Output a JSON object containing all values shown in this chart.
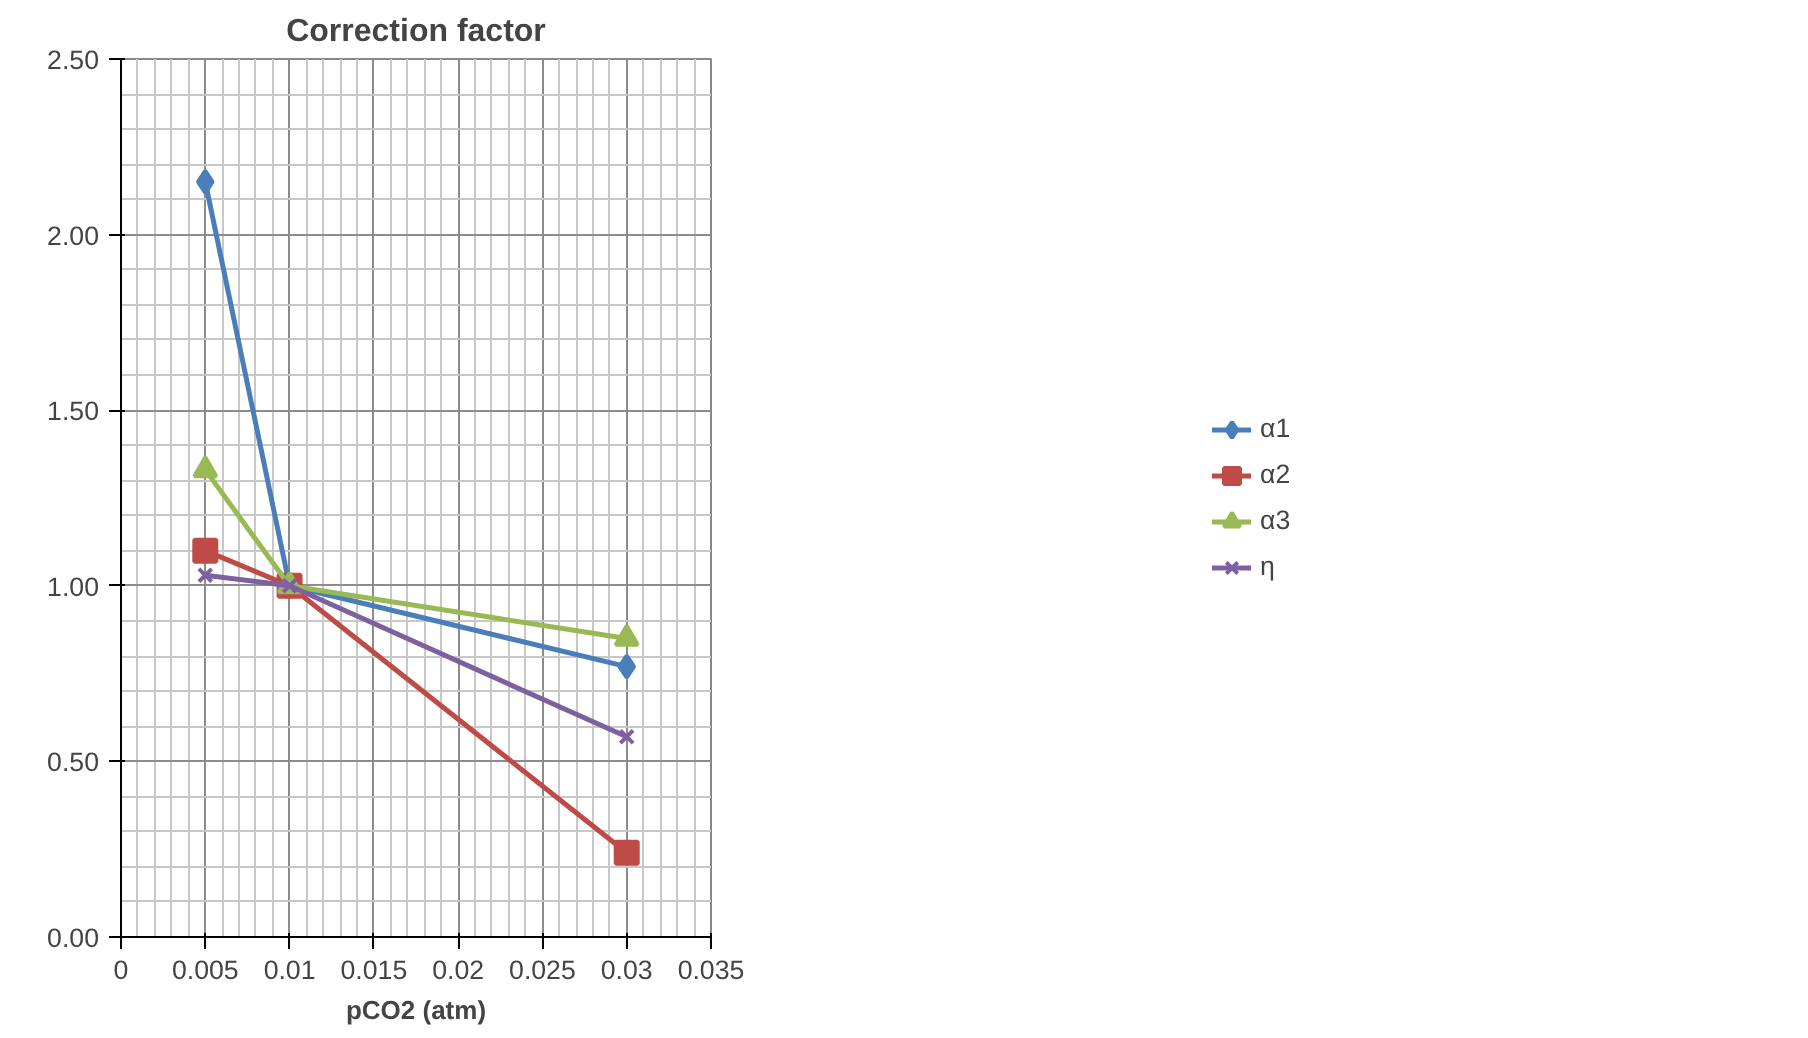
{
  "chart_data": {
    "type": "line",
    "title": "Correction factor",
    "xlabel": "pCO2 (atm)",
    "x": [
      0.005,
      0.01,
      0.03
    ],
    "series": [
      {
        "name": "α1",
        "color": "#4a7ebb",
        "marker": "diamond",
        "values": [
          2.15,
          1.0,
          0.77
        ]
      },
      {
        "name": "α2",
        "color": "#be4b48",
        "marker": "square",
        "values": [
          1.1,
          1.0,
          0.24
        ]
      },
      {
        "name": "α3",
        "color": "#98b954",
        "marker": "triangle",
        "values": [
          1.33,
          1.0,
          0.85
        ]
      },
      {
        "name": "η",
        "color": "#7d60a0",
        "marker": "cross",
        "values": [
          1.03,
          1.0,
          0.57
        ]
      }
    ],
    "xlim": [
      0,
      0.035
    ],
    "xticks": [
      0,
      0.005,
      0.01,
      0.015,
      0.02,
      0.025,
      0.03,
      0.035
    ],
    "ylim": [
      0,
      2.5
    ],
    "yticks": [
      {
        "value": 0,
        "label": "0.00"
      },
      {
        "value": 0.5,
        "label": "0.50"
      },
      {
        "value": 1,
        "label": "1.00"
      },
      {
        "value": 1.5,
        "label": "1.50"
      },
      {
        "value": 2,
        "label": "2.00"
      },
      {
        "value": 2.5,
        "label": "2.50"
      }
    ],
    "grid": true,
    "legend": "right",
    "line_style": "solid"
  }
}
